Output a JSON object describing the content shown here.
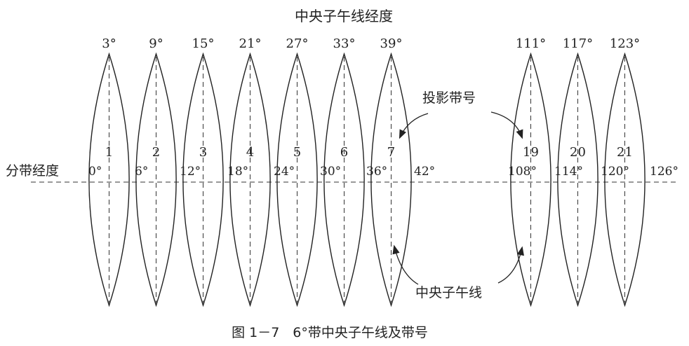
{
  "title": "中央子午线经度",
  "left_label": "分带经度",
  "projection_label": "投影带号",
  "meridian_label": "中央子午线",
  "caption": "图 1－7　6°带中央子午线及带号",
  "zones": [
    {
      "number": "1",
      "central_meridian": "3°",
      "west_edge": "0°",
      "east_edge": "6°"
    },
    {
      "number": "2",
      "central_meridian": "9°",
      "west_edge": "6°",
      "east_edge": "12°"
    },
    {
      "number": "3",
      "central_meridian": "15°",
      "west_edge": "12°",
      "east_edge": "18°"
    },
    {
      "number": "4",
      "central_meridian": "21°",
      "west_edge": "18°",
      "east_edge": "24°"
    },
    {
      "number": "5",
      "central_meridian": "27°",
      "west_edge": "24°",
      "east_edge": "30°"
    },
    {
      "number": "6",
      "central_meridian": "33°",
      "west_edge": "30°",
      "east_edge": "36°"
    },
    {
      "number": "7",
      "central_meridian": "39°",
      "west_edge": "36°",
      "east_edge": "42°"
    },
    {
      "number": "19",
      "central_meridian": "111°",
      "west_edge": "108°",
      "east_edge": "114°"
    },
    {
      "number": "20",
      "central_meridian": "117°",
      "west_edge": "114°",
      "east_edge": "120°"
    },
    {
      "number": "21",
      "central_meridian": "123°",
      "west_edge": "120°",
      "east_edge": "126°"
    }
  ],
  "edge_labels": [
    "0°",
    "6°",
    "12°",
    "18°",
    "24°",
    "30°",
    "36°",
    "42°",
    "108°",
    "114°",
    "120°",
    "126°"
  ]
}
